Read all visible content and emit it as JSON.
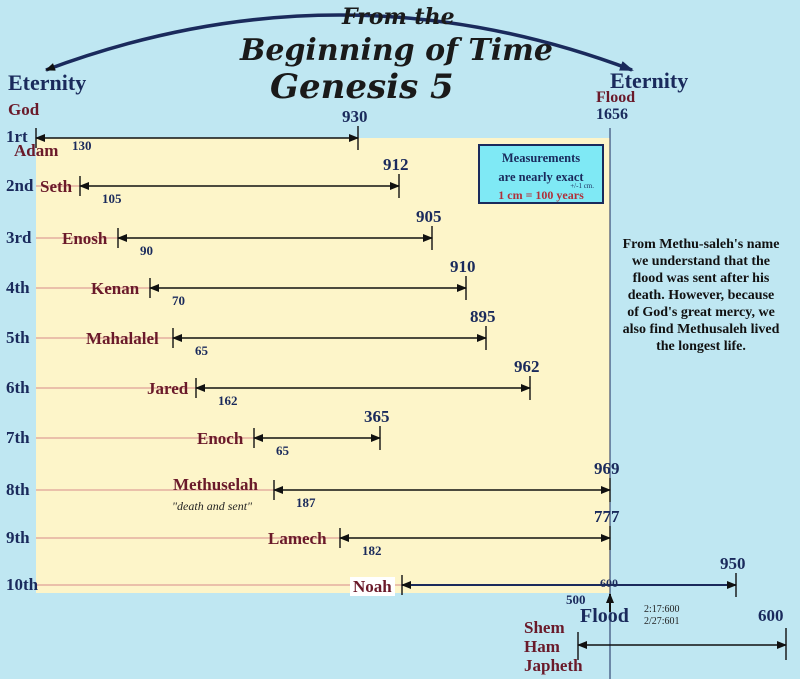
{
  "title": {
    "line1": "From the",
    "line2": "Beginning of Time",
    "line3": "Genesis 5"
  },
  "left_labels": {
    "eternity": "Eternity",
    "god": "God"
  },
  "right_labels": {
    "eternity": "Eternity",
    "flood": "Flood",
    "flood_year": "1656"
  },
  "legend": {
    "line1": "Measurements",
    "line2": "are nearly exact",
    "tolerance": "+/-1 cm.",
    "scale": "1 cm = 100 years"
  },
  "note": "From Methu-saleh's name we understand that the flood was sent after his death. However, because of God's great mercy, we also find Methusaleh lived the longest life.",
  "generations": [
    {
      "ordinal": "1rt",
      "name": "Adam",
      "son_age": "130",
      "lifespan": "930",
      "note": ""
    },
    {
      "ordinal": "2nd",
      "name": "Seth",
      "son_age": "105",
      "lifespan": "912",
      "note": ""
    },
    {
      "ordinal": "3rd",
      "name": "Enosh",
      "son_age": "90",
      "lifespan": "905",
      "note": ""
    },
    {
      "ordinal": "4th",
      "name": "Kenan",
      "son_age": "70",
      "lifespan": "910",
      "note": ""
    },
    {
      "ordinal": "5th",
      "name": "Mahalalel",
      "son_age": "65",
      "lifespan": "895",
      "note": ""
    },
    {
      "ordinal": "6th",
      "name": "Jared",
      "son_age": "162",
      "lifespan": "962",
      "note": ""
    },
    {
      "ordinal": "7th",
      "name": "Enoch",
      "son_age": "65",
      "lifespan": "365",
      "note": ""
    },
    {
      "ordinal": "8th",
      "name": "Methuselah",
      "son_age": "187",
      "lifespan": "969",
      "note": "\"death and sent\""
    },
    {
      "ordinal": "9th",
      "name": "Lamech",
      "son_age": "182",
      "lifespan": "777",
      "note": ""
    },
    {
      "ordinal": "10th",
      "name": "Noah",
      "son_age": "500",
      "lifespan": "950",
      "note": ""
    }
  ],
  "noah_flood_age": "600",
  "flood_label": "Flood",
  "flood_dates": [
    "2:17:600",
    "2/27:601"
  ],
  "sons": [
    "Shem",
    "Ham",
    "Japheth"
  ],
  "sons_span": "600",
  "colors": {
    "background": "#bfe7f2",
    "panel": "#fdf5c9",
    "navy": "#1a2a5c",
    "maroon": "#6a1a2a",
    "legend_fill": "#7fe9f5",
    "legend_scale": "#b0303a"
  }
}
